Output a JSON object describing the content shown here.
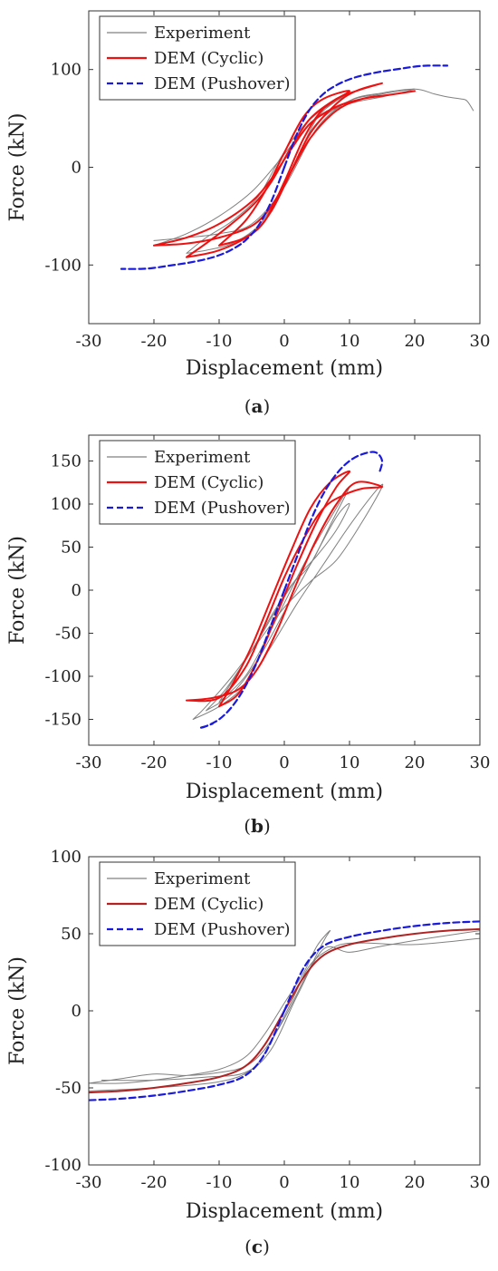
{
  "chart_data": [
    {
      "type": "line",
      "panel_label": "a",
      "xlabel": "Displacement (mm)",
      "ylabel": "Force (kN)",
      "xlim": [
        -30,
        30
      ],
      "ylim": [
        -160,
        160
      ],
      "xticks": [
        -30,
        -20,
        -10,
        0,
        10,
        20,
        30
      ],
      "yticks": [
        -100,
        0,
        100
      ],
      "legend_position": "top-left",
      "series": [
        {
          "name": "Experiment",
          "color": "#808080",
          "style": "solid",
          "loops": [
            {
              "x": [
                -15,
                -12,
                -8,
                -4,
                -1,
                2,
                5,
                8,
                10,
                8,
                5,
                2,
                -1,
                -4,
                -8,
                -12,
                -15
              ],
              "y": [
                -88,
                -85,
                -78,
                -60,
                -30,
                10,
                50,
                68,
                75,
                68,
                55,
                35,
                5,
                -30,
                -55,
                -72,
                -88
              ]
            },
            {
              "x": [
                -20,
                -15,
                -10,
                -5,
                -1,
                2,
                5,
                10,
                15,
                20,
                15,
                10,
                5,
                2,
                -1,
                -5,
                -10,
                -15,
                -20
              ],
              "y": [
                -80,
                -78,
                -72,
                -60,
                -30,
                10,
                45,
                68,
                75,
                80,
                72,
                65,
                50,
                30,
                5,
                -25,
                -50,
                -68,
                -80
              ]
            },
            {
              "x": [
                -20,
                -15,
                -10,
                -5,
                0,
                5,
                10,
                15,
                20,
                23,
                25,
                27,
                28,
                29
              ],
              "y": [
                -75,
                -72,
                -68,
                -58,
                -20,
                40,
                68,
                76,
                80,
                75,
                72,
                70,
                68,
                58
              ]
            }
          ]
        },
        {
          "name": "DEM (Cyclic)",
          "color": "#ee1111",
          "style": "solid",
          "loops": [
            {
              "x": [
                -10,
                -6,
                -3,
                0,
                3,
                6,
                10,
                6,
                3,
                0,
                -3,
                -6,
                -10
              ],
              "y": [
                -80,
                -72,
                -55,
                -15,
                30,
                60,
                78,
                70,
                52,
                15,
                -25,
                -55,
                -80
              ]
            },
            {
              "x": [
                -15,
                -10,
                -5,
                -2,
                1,
                4,
                8,
                11,
                15,
                11,
                8,
                4,
                1,
                -2,
                -5,
                -10,
                -15
              ],
              "y": [
                -92,
                -85,
                -68,
                -45,
                -5,
                35,
                65,
                78,
                86,
                78,
                70,
                50,
                20,
                -15,
                -40,
                -68,
                -92
              ]
            },
            {
              "x": [
                -20,
                -15,
                -10,
                -5,
                -2,
                1,
                4,
                8,
                12,
                16,
                20,
                16,
                12,
                8,
                4,
                1,
                -2,
                -5,
                -10,
                -15,
                -20
              ],
              "y": [
                -80,
                -78,
                -72,
                -60,
                -40,
                -5,
                30,
                58,
                70,
                74,
                78,
                74,
                70,
                62,
                45,
                18,
                -12,
                -35,
                -58,
                -72,
                -80
              ]
            }
          ]
        },
        {
          "name": "DEM (Pushover)",
          "color": "#1a1adc",
          "style": "dashed",
          "loops": [
            {
              "x": [
                0,
                2,
                4,
                6,
                8,
                10,
                12,
                15,
                18,
                20,
                22,
                25
              ],
              "y": [
                0,
                35,
                60,
                75,
                84,
                90,
                94,
                98,
                101,
                103,
                104,
                104
              ]
            },
            {
              "x": [
                0,
                -2,
                -4,
                -6,
                -8,
                -10,
                -12,
                -15,
                -18,
                -20,
                -22,
                -25
              ],
              "y": [
                0,
                -35,
                -60,
                -75,
                -84,
                -90,
                -94,
                -98,
                -101,
                -103,
                -104,
                -104
              ]
            }
          ]
        }
      ]
    },
    {
      "type": "line",
      "panel_label": "b",
      "xlabel": "Displacement (mm)",
      "ylabel": "Force (kN)",
      "xlim": [
        -30,
        30
      ],
      "ylim": [
        -180,
        180
      ],
      "xticks": [
        -30,
        -20,
        -10,
        0,
        10,
        20,
        30
      ],
      "yticks": [
        -150,
        -100,
        -50,
        0,
        50,
        100,
        150
      ],
      "legend_position": "top-left",
      "series": [
        {
          "name": "Experiment",
          "color": "#808080",
          "style": "solid",
          "loops": [
            {
              "x": [
                -14,
                -10,
                -6,
                -2,
                2,
                6,
                10,
                14,
                15,
                12,
                8,
                4,
                0,
                -4,
                -8,
                -12,
                -14
              ],
              "y": [
                -150,
                -135,
                -110,
                -65,
                -15,
                30,
                75,
                115,
                120,
                80,
                35,
                10,
                -20,
                -60,
                -100,
                -135,
                -150
              ]
            },
            {
              "x": [
                -10,
                -6,
                -3,
                0,
                3,
                6,
                10,
                7,
                4,
                1,
                -2,
                -5,
                -10
              ],
              "y": [
                -130,
                -100,
                -60,
                -15,
                30,
                70,
                120,
                75,
                30,
                5,
                -30,
                -70,
                -130
              ]
            },
            {
              "x": [
                -12,
                -8,
                -4,
                0,
                4,
                8,
                10,
                8,
                5,
                2,
                -1,
                -5,
                -9,
                -12
              ],
              "y": [
                -140,
                -120,
                -80,
                -25,
                30,
                85,
                100,
                70,
                40,
                15,
                -20,
                -70,
                -115,
                -140
              ]
            }
          ]
        },
        {
          "name": "DEM (Cyclic)",
          "color": "#ee1111",
          "style": "solid",
          "loops": [
            {
              "x": [
                -10,
                -7,
                -4,
                -1,
                2,
                5,
                8,
                10,
                7,
                4,
                1,
                -2,
                -5,
                -8,
                -10
              ],
              "y": [
                -135,
                -120,
                -80,
                -25,
                30,
                80,
                120,
                138,
                125,
                95,
                45,
                -10,
                -65,
                -110,
                -135
              ]
            },
            {
              "x": [
                -15,
                -11,
                -7,
                -4,
                -1,
                2,
                5,
                8,
                11,
                15,
                12,
                9,
                6,
                3,
                0,
                -3,
                -6,
                -10,
                -15
              ],
              "y": [
                -128,
                -125,
                -115,
                -90,
                -45,
                10,
                60,
                100,
                125,
                120,
                118,
                110,
                95,
                60,
                15,
                -40,
                -90,
                -125,
                -128
              ]
            }
          ]
        },
        {
          "name": "DEM (Pushover)",
          "color": "#1a1adc",
          "style": "dashed",
          "loops": [
            {
              "x": [
                0,
                2,
                4,
                6,
                8,
                10,
                12,
                14,
                15,
                14.5
              ],
              "y": [
                0,
                40,
                80,
                112,
                135,
                150,
                158,
                160,
                150,
                135
              ]
            },
            {
              "x": [
                0,
                -2,
                -4,
                -6,
                -8,
                -10,
                -12,
                -13,
                -12,
                -11
              ],
              "y": [
                0,
                -40,
                -80,
                -112,
                -135,
                -150,
                -158,
                -160,
                -158,
                -155
              ]
            }
          ]
        }
      ]
    },
    {
      "type": "line",
      "panel_label": "c",
      "xlabel": "Displacement (mm)",
      "ylabel": "Force (kN)",
      "xlim": [
        -30,
        30
      ],
      "ylim": [
        -100,
        100
      ],
      "xticks": [
        -30,
        -20,
        -10,
        0,
        10,
        20,
        30
      ],
      "yticks": [
        -100,
        -50,
        0,
        50,
        100
      ],
      "legend_position": "top-left",
      "series": [
        {
          "name": "Experiment",
          "color": "#808080",
          "style": "solid",
          "loops": [
            {
              "x": [
                -30,
                -25,
                -20,
                -15,
                -10,
                -6,
                -3,
                0,
                3,
                6,
                7,
                5,
                3,
                0,
                -3,
                -6,
                -10,
                -15,
                -20,
                -25,
                -30
              ],
              "y": [
                -47,
                -44,
                -41,
                -42,
                -40,
                -36,
                -25,
                -5,
                20,
                45,
                52,
                42,
                25,
                5,
                -15,
                -30,
                -38,
                -42,
                -45,
                -47,
                -47
              ]
            },
            {
              "x": [
                -30,
                -20,
                -10,
                -5,
                -2,
                1,
                4,
                8,
                12,
                20,
                30
              ],
              "y": [
                -52,
                -50,
                -46,
                -38,
                -20,
                5,
                30,
                42,
                44,
                43,
                47
              ]
            },
            {
              "x": [
                -28,
                -20,
                -12,
                -6,
                -2,
                2,
                6,
                10,
                15,
                22,
                30
              ],
              "y": [
                -45,
                -45,
                -43,
                -40,
                -25,
                10,
                40,
                38,
                42,
                47,
                52
              ]
            }
          ]
        },
        {
          "name": "DEM (Cyclic)",
          "color": "#b22222",
          "style": "solid",
          "loops": [
            {
              "x": [
                -30,
                -25,
                -20,
                -15,
                -10,
                -6,
                -3,
                0,
                3,
                6,
                10,
                15,
                20,
                25,
                30
              ],
              "y": [
                -53,
                -52,
                -50,
                -47,
                -43,
                -36,
                -22,
                0,
                22,
                36,
                43,
                47,
                50,
                52,
                53
              ]
            }
          ]
        },
        {
          "name": "DEM (Pushover)",
          "color": "#1a1adc",
          "style": "dashed",
          "loops": [
            {
              "x": [
                0,
                3,
                6,
                10,
                15,
                20,
                25,
                30
              ],
              "y": [
                0,
                28,
                42,
                48,
                52,
                55,
                57,
                58
              ]
            },
            {
              "x": [
                0,
                -3,
                -6,
                -10,
                -15,
                -20,
                -25,
                -30
              ],
              "y": [
                0,
                -28,
                -42,
                -48,
                -52,
                -55,
                -57,
                -58
              ]
            }
          ]
        }
      ]
    }
  ]
}
